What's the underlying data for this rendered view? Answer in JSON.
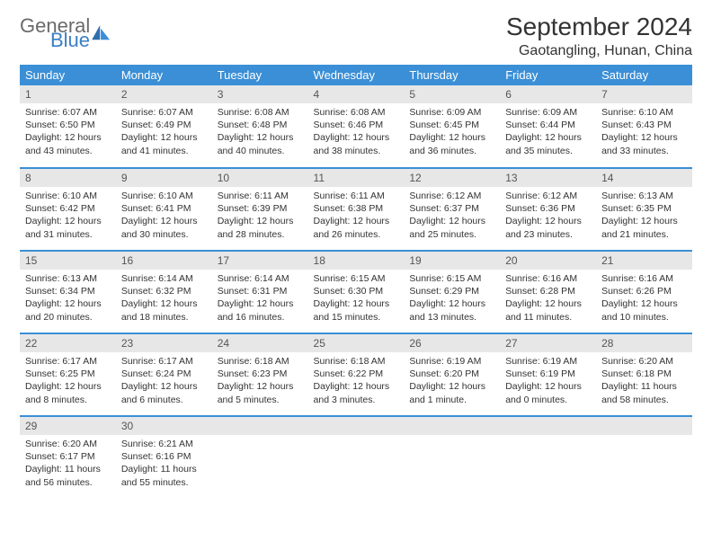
{
  "brand": {
    "general": "General",
    "blue": "Blue",
    "accent": "#3b8fd6"
  },
  "title": "September 2024",
  "location": "Gaotangling, Hunan, China",
  "dayNames": [
    "Sunday",
    "Monday",
    "Tuesday",
    "Wednesday",
    "Thursday",
    "Friday",
    "Saturday"
  ],
  "colors": {
    "header_bg": "#3b8fd6",
    "header_text": "#ffffff",
    "daynum_bg": "#e7e7e7",
    "daynum_text": "#555555",
    "cell_text": "#333333",
    "rule": "#3b8fd6"
  },
  "typography": {
    "title_fontsize": 28,
    "location_fontsize": 16,
    "dayname_fontsize": 13,
    "daynum_fontsize": 12,
    "body_fontsize": 10.5
  },
  "weeks": [
    [
      {
        "n": "1",
        "sr": "Sunrise: 6:07 AM",
        "ss": "Sunset: 6:50 PM",
        "dl1": "Daylight: 12 hours",
        "dl2": "and 43 minutes."
      },
      {
        "n": "2",
        "sr": "Sunrise: 6:07 AM",
        "ss": "Sunset: 6:49 PM",
        "dl1": "Daylight: 12 hours",
        "dl2": "and 41 minutes."
      },
      {
        "n": "3",
        "sr": "Sunrise: 6:08 AM",
        "ss": "Sunset: 6:48 PM",
        "dl1": "Daylight: 12 hours",
        "dl2": "and 40 minutes."
      },
      {
        "n": "4",
        "sr": "Sunrise: 6:08 AM",
        "ss": "Sunset: 6:46 PM",
        "dl1": "Daylight: 12 hours",
        "dl2": "and 38 minutes."
      },
      {
        "n": "5",
        "sr": "Sunrise: 6:09 AM",
        "ss": "Sunset: 6:45 PM",
        "dl1": "Daylight: 12 hours",
        "dl2": "and 36 minutes."
      },
      {
        "n": "6",
        "sr": "Sunrise: 6:09 AM",
        "ss": "Sunset: 6:44 PM",
        "dl1": "Daylight: 12 hours",
        "dl2": "and 35 minutes."
      },
      {
        "n": "7",
        "sr": "Sunrise: 6:10 AM",
        "ss": "Sunset: 6:43 PM",
        "dl1": "Daylight: 12 hours",
        "dl2": "and 33 minutes."
      }
    ],
    [
      {
        "n": "8",
        "sr": "Sunrise: 6:10 AM",
        "ss": "Sunset: 6:42 PM",
        "dl1": "Daylight: 12 hours",
        "dl2": "and 31 minutes."
      },
      {
        "n": "9",
        "sr": "Sunrise: 6:10 AM",
        "ss": "Sunset: 6:41 PM",
        "dl1": "Daylight: 12 hours",
        "dl2": "and 30 minutes."
      },
      {
        "n": "10",
        "sr": "Sunrise: 6:11 AM",
        "ss": "Sunset: 6:39 PM",
        "dl1": "Daylight: 12 hours",
        "dl2": "and 28 minutes."
      },
      {
        "n": "11",
        "sr": "Sunrise: 6:11 AM",
        "ss": "Sunset: 6:38 PM",
        "dl1": "Daylight: 12 hours",
        "dl2": "and 26 minutes."
      },
      {
        "n": "12",
        "sr": "Sunrise: 6:12 AM",
        "ss": "Sunset: 6:37 PM",
        "dl1": "Daylight: 12 hours",
        "dl2": "and 25 minutes."
      },
      {
        "n": "13",
        "sr": "Sunrise: 6:12 AM",
        "ss": "Sunset: 6:36 PM",
        "dl1": "Daylight: 12 hours",
        "dl2": "and 23 minutes."
      },
      {
        "n": "14",
        "sr": "Sunrise: 6:13 AM",
        "ss": "Sunset: 6:35 PM",
        "dl1": "Daylight: 12 hours",
        "dl2": "and 21 minutes."
      }
    ],
    [
      {
        "n": "15",
        "sr": "Sunrise: 6:13 AM",
        "ss": "Sunset: 6:34 PM",
        "dl1": "Daylight: 12 hours",
        "dl2": "and 20 minutes."
      },
      {
        "n": "16",
        "sr": "Sunrise: 6:14 AM",
        "ss": "Sunset: 6:32 PM",
        "dl1": "Daylight: 12 hours",
        "dl2": "and 18 minutes."
      },
      {
        "n": "17",
        "sr": "Sunrise: 6:14 AM",
        "ss": "Sunset: 6:31 PM",
        "dl1": "Daylight: 12 hours",
        "dl2": "and 16 minutes."
      },
      {
        "n": "18",
        "sr": "Sunrise: 6:15 AM",
        "ss": "Sunset: 6:30 PM",
        "dl1": "Daylight: 12 hours",
        "dl2": "and 15 minutes."
      },
      {
        "n": "19",
        "sr": "Sunrise: 6:15 AM",
        "ss": "Sunset: 6:29 PM",
        "dl1": "Daylight: 12 hours",
        "dl2": "and 13 minutes."
      },
      {
        "n": "20",
        "sr": "Sunrise: 6:16 AM",
        "ss": "Sunset: 6:28 PM",
        "dl1": "Daylight: 12 hours",
        "dl2": "and 11 minutes."
      },
      {
        "n": "21",
        "sr": "Sunrise: 6:16 AM",
        "ss": "Sunset: 6:26 PM",
        "dl1": "Daylight: 12 hours",
        "dl2": "and 10 minutes."
      }
    ],
    [
      {
        "n": "22",
        "sr": "Sunrise: 6:17 AM",
        "ss": "Sunset: 6:25 PM",
        "dl1": "Daylight: 12 hours",
        "dl2": "and 8 minutes."
      },
      {
        "n": "23",
        "sr": "Sunrise: 6:17 AM",
        "ss": "Sunset: 6:24 PM",
        "dl1": "Daylight: 12 hours",
        "dl2": "and 6 minutes."
      },
      {
        "n": "24",
        "sr": "Sunrise: 6:18 AM",
        "ss": "Sunset: 6:23 PM",
        "dl1": "Daylight: 12 hours",
        "dl2": "and 5 minutes."
      },
      {
        "n": "25",
        "sr": "Sunrise: 6:18 AM",
        "ss": "Sunset: 6:22 PM",
        "dl1": "Daylight: 12 hours",
        "dl2": "and 3 minutes."
      },
      {
        "n": "26",
        "sr": "Sunrise: 6:19 AM",
        "ss": "Sunset: 6:20 PM",
        "dl1": "Daylight: 12 hours",
        "dl2": "and 1 minute."
      },
      {
        "n": "27",
        "sr": "Sunrise: 6:19 AM",
        "ss": "Sunset: 6:19 PM",
        "dl1": "Daylight: 12 hours",
        "dl2": "and 0 minutes."
      },
      {
        "n": "28",
        "sr": "Sunrise: 6:20 AM",
        "ss": "Sunset: 6:18 PM",
        "dl1": "Daylight: 11 hours",
        "dl2": "and 58 minutes."
      }
    ],
    [
      {
        "n": "29",
        "sr": "Sunrise: 6:20 AM",
        "ss": "Sunset: 6:17 PM",
        "dl1": "Daylight: 11 hours",
        "dl2": "and 56 minutes."
      },
      {
        "n": "30",
        "sr": "Sunrise: 6:21 AM",
        "ss": "Sunset: 6:16 PM",
        "dl1": "Daylight: 11 hours",
        "dl2": "and 55 minutes."
      },
      {
        "n": "",
        "sr": "",
        "ss": "",
        "dl1": "",
        "dl2": ""
      },
      {
        "n": "",
        "sr": "",
        "ss": "",
        "dl1": "",
        "dl2": ""
      },
      {
        "n": "",
        "sr": "",
        "ss": "",
        "dl1": "",
        "dl2": ""
      },
      {
        "n": "",
        "sr": "",
        "ss": "",
        "dl1": "",
        "dl2": ""
      },
      {
        "n": "",
        "sr": "",
        "ss": "",
        "dl1": "",
        "dl2": ""
      }
    ]
  ]
}
